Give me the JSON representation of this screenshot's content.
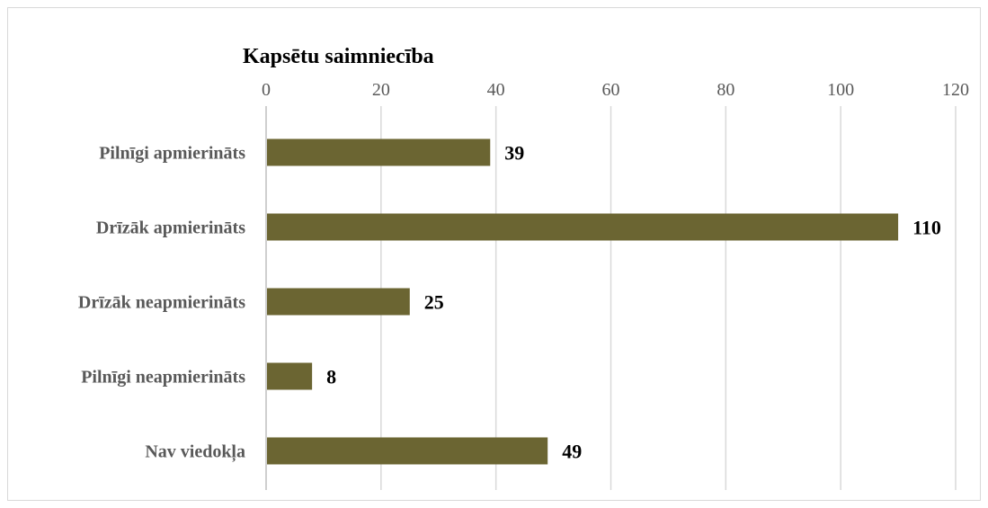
{
  "chart_data": {
    "type": "bar",
    "orientation": "horizontal",
    "title": "Kapsētu saimniecība",
    "categories": [
      "Pilnīgi apmierināts",
      "Drīzāk apmierināts",
      "Drīzāk neapmierināts",
      "Pilnīgi neapmierināts",
      "Nav viedokļa"
    ],
    "values": [
      39,
      110,
      25,
      8,
      49
    ],
    "xlim": [
      0,
      120
    ],
    "xticks": [
      "0",
      "20",
      "40",
      "60",
      "80",
      "100",
      "120"
    ],
    "xaxis_position": "top",
    "grid": true,
    "data_labels": true,
    "bar_color": "#6b6532"
  }
}
